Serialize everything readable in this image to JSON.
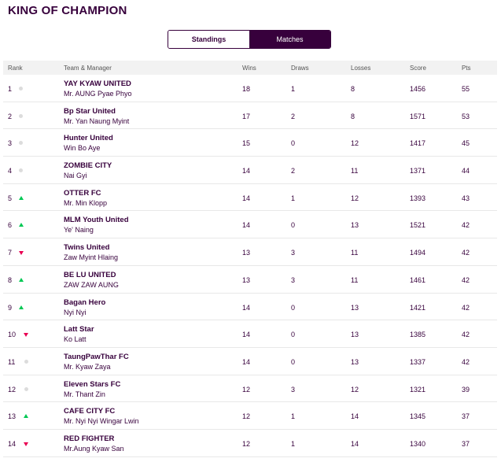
{
  "title": "KING OF CHAMPION",
  "tabs": {
    "standings": "Standings",
    "matches": "Matches"
  },
  "columns": {
    "rank": "Rank",
    "team": "Team & Manager",
    "wins": "Wins",
    "draws": "Draws",
    "losses": "Losses",
    "score": "Score",
    "pts": "Pts"
  },
  "rows": [
    {
      "rank": "1",
      "move": "same",
      "team": "YAY KYAW UNITED",
      "manager": "Mr. AUNG Pyae Phyo",
      "wins": "18",
      "draws": "1",
      "losses": "8",
      "score": "1456",
      "pts": "55"
    },
    {
      "rank": "2",
      "move": "same",
      "team": "Bp Star United",
      "manager": "Mr. Yan Naung Myint",
      "wins": "17",
      "draws": "2",
      "losses": "8",
      "score": "1571",
      "pts": "53"
    },
    {
      "rank": "3",
      "move": "same",
      "team": "Hunter United",
      "manager": "Win Bo Aye",
      "wins": "15",
      "draws": "0",
      "losses": "12",
      "score": "1417",
      "pts": "45"
    },
    {
      "rank": "4",
      "move": "same",
      "team": "ZOMBIE CITY",
      "manager": "Nai Gyi",
      "wins": "14",
      "draws": "2",
      "losses": "11",
      "score": "1371",
      "pts": "44"
    },
    {
      "rank": "5",
      "move": "up",
      "team": "OTTER FC",
      "manager": "Mr. Min Klopp",
      "wins": "14",
      "draws": "1",
      "losses": "12",
      "score": "1393",
      "pts": "43"
    },
    {
      "rank": "6",
      "move": "up",
      "team": "MLM Youth United",
      "manager": "Ye' Naing",
      "wins": "14",
      "draws": "0",
      "losses": "13",
      "score": "1521",
      "pts": "42"
    },
    {
      "rank": "7",
      "move": "down",
      "team": "Twins United",
      "manager": "Zaw Myint Hlaing",
      "wins": "13",
      "draws": "3",
      "losses": "11",
      "score": "1494",
      "pts": "42"
    },
    {
      "rank": "8",
      "move": "up",
      "team": "BE LU UNITED",
      "manager": "ZAW ZAW AUNG",
      "wins": "13",
      "draws": "3",
      "losses": "11",
      "score": "1461",
      "pts": "42"
    },
    {
      "rank": "9",
      "move": "up",
      "team": "Bagan Hero",
      "manager": "Nyi Nyi",
      "wins": "14",
      "draws": "0",
      "losses": "13",
      "score": "1421",
      "pts": "42"
    },
    {
      "rank": "10",
      "move": "down",
      "team": "Latt Star",
      "manager": "Ko Latt",
      "wins": "14",
      "draws": "0",
      "losses": "13",
      "score": "1385",
      "pts": "42"
    },
    {
      "rank": "11",
      "move": "same",
      "team": "TaungPawThar FC",
      "manager": "Mr. Kyaw Zaya",
      "wins": "14",
      "draws": "0",
      "losses": "13",
      "score": "1337",
      "pts": "42"
    },
    {
      "rank": "12",
      "move": "same",
      "team": "Eleven Stars FC",
      "manager": "Mr. Thant Zin",
      "wins": "12",
      "draws": "3",
      "losses": "12",
      "score": "1321",
      "pts": "39"
    },
    {
      "rank": "13",
      "move": "up",
      "team": "CAFE CITY FC",
      "manager": "Mr. Nyi Nyi Wingar Lwin",
      "wins": "12",
      "draws": "1",
      "losses": "14",
      "score": "1345",
      "pts": "37"
    },
    {
      "rank": "14",
      "move": "down",
      "team": "RED FIGHTER",
      "manager": "Mr.Aung Kyaw San",
      "wins": "12",
      "draws": "1",
      "losses": "14",
      "score": "1340",
      "pts": "37"
    }
  ],
  "colors": {
    "primary": "#37003c",
    "up": "#00c853",
    "down": "#e90052",
    "same": "#dcdcdc",
    "header_bg": "#f2f2f2"
  }
}
